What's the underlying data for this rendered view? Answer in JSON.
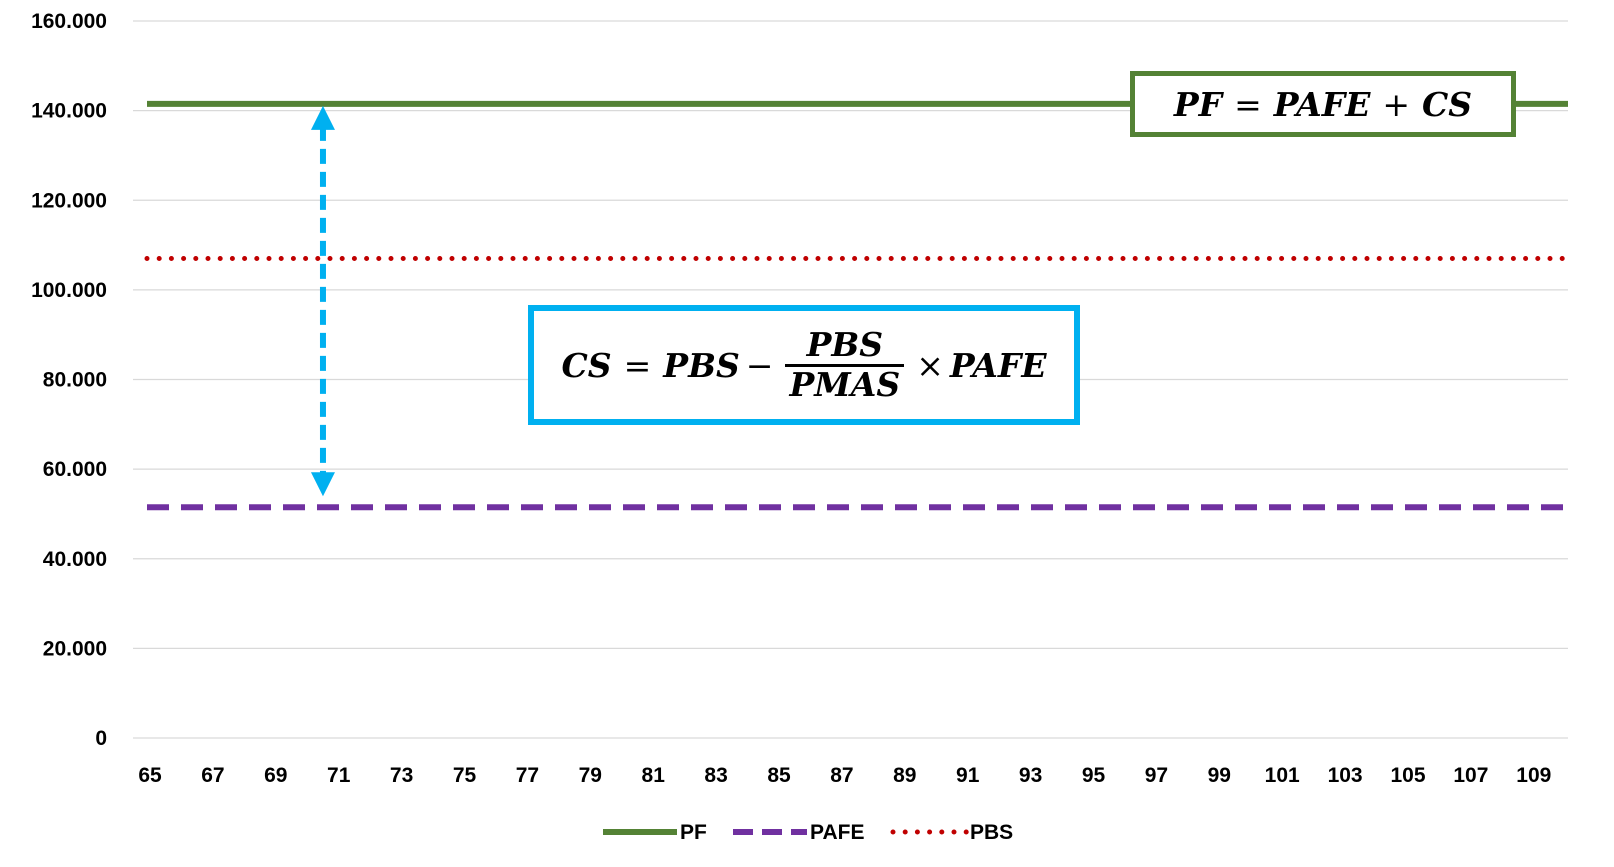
{
  "chart_data": {
    "type": "line",
    "x": [
      "65",
      "67",
      "69",
      "71",
      "73",
      "75",
      "77",
      "79",
      "81",
      "83",
      "85",
      "87",
      "89",
      "91",
      "93",
      "95",
      "97",
      "99",
      "101",
      "103",
      "105",
      "107",
      "109"
    ],
    "ylim": [
      0,
      160000
    ],
    "y_ticks": [
      "0",
      "20.000",
      "40.000",
      "60.000",
      "80.000",
      "100.000",
      "120.000",
      "140.000",
      "160.000"
    ],
    "y_tick_values": [
      0,
      20000,
      40000,
      60000,
      80000,
      100000,
      120000,
      140000,
      160000
    ],
    "grid": true,
    "legend_position": "bottom",
    "series": [
      {
        "name": "PF",
        "value": 141500,
        "color": "#548235",
        "style": "solid"
      },
      {
        "name": "PAFE",
        "value": 51500,
        "color": "#7030a0",
        "style": "dashed"
      },
      {
        "name": "PBS",
        "value": 107000,
        "color": "#c00000",
        "style": "dotted"
      }
    ],
    "arrow": {
      "from_value": 51500,
      "to_value": 141500,
      "at_x": 76,
      "color": "#00b0f0"
    },
    "annotations": {
      "pf_formula": {
        "lhs": "PF",
        "eq": "=",
        "a": "PAFE",
        "op": "+",
        "b": "CS"
      },
      "cs_formula": {
        "lhs": "CS",
        "eq": "=",
        "a": "PBS",
        "op": "−",
        "num": "PBS",
        "den": "PMAS",
        "times": "×",
        "b": "PAFE"
      }
    }
  }
}
